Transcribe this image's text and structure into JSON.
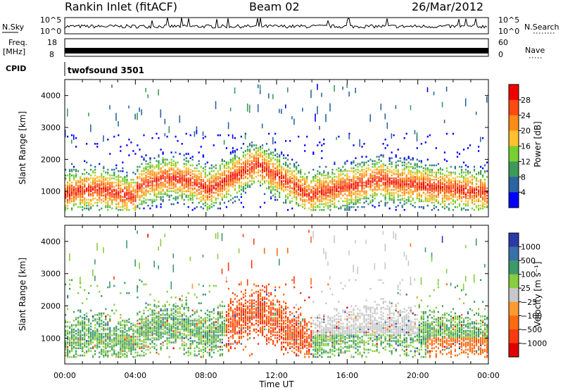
{
  "header": {
    "station": "Rankin Inlet (fitACF)",
    "beam": "Beam 02",
    "date": "26/Mar/2012"
  },
  "chart_data": [
    {
      "type": "line",
      "panel": "noise",
      "left_label": "N.Sky",
      "right_label": "N.Search",
      "y_tick_labels": [
        "10^5",
        "10^0"
      ],
      "x_range_hours": [
        0,
        24
      ]
    },
    {
      "type": "line",
      "panel": "frequency",
      "left_label_line1": "Freq.",
      "left_label_line2": "[MHz]",
      "left_ticks": [
        "18",
        "8"
      ],
      "right_label": "Nave",
      "right_ticks": [
        "60",
        "0"
      ],
      "x_range_hours": [
        0,
        24
      ]
    },
    {
      "type": "table",
      "panel": "cpid",
      "label": "CPID",
      "value": "twofsound 3501"
    },
    {
      "type": "heatmap",
      "panel": "power",
      "ylabel": "Slant Range [km]",
      "y_range": [
        200,
        4500
      ],
      "y_ticks": [
        1000,
        2000,
        3000,
        4000
      ],
      "x_range_hours": [
        0,
        24
      ],
      "colorbar_label": "Power [dB]",
      "colorbar_ticks": [
        "28",
        "24",
        "20",
        "16",
        "12",
        "8",
        "4"
      ],
      "colorbar_colors": [
        "#f00000",
        "#ff4a10",
        "#ff8a18",
        "#ffc12c",
        "#78d030",
        "#3c9a58",
        "#2d63a0",
        "#0000ff"
      ]
    },
    {
      "type": "heatmap",
      "panel": "velocity",
      "ylabel": "Slant Range [km]",
      "y_range": [
        200,
        4500
      ],
      "y_ticks": [
        1000,
        2000,
        3000,
        4000
      ],
      "x_range_hours": [
        0,
        24
      ],
      "x_tick_labels": [
        "00:00",
        "04:00",
        "08:00",
        "12:00",
        "16:00",
        "20:00",
        "00:00"
      ],
      "xlabel": "Time UT",
      "colorbar_label": "Velocity [m s⁻¹]",
      "colorbar_ticks": [
        "1000",
        "500",
        "100",
        "25",
        "−25",
        "−100",
        "−500",
        "−1000"
      ],
      "colorbar_colors": [
        "#2c3aa8",
        "#3a70a8",
        "#3c9a68",
        "#88cc40",
        "#c8c8c8",
        "#ff9a30",
        "#ff6a10",
        "#f83a10",
        "#e00000"
      ]
    }
  ]
}
